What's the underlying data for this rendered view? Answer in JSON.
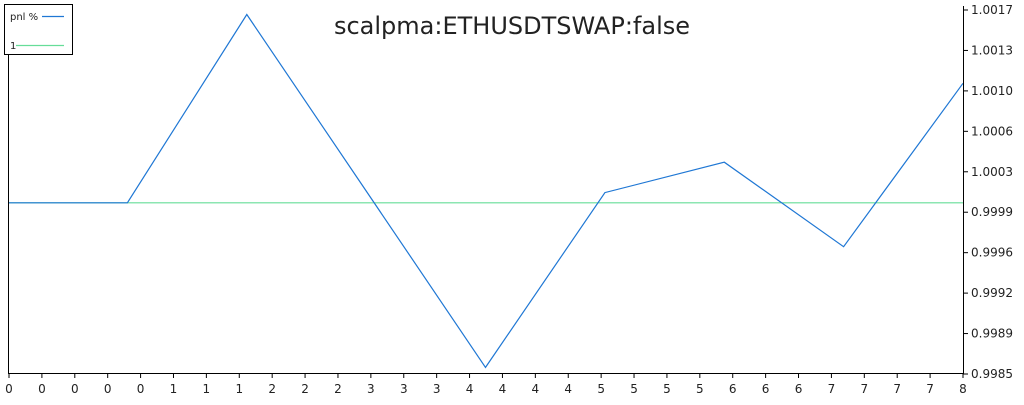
{
  "chart_data": {
    "type": "line",
    "title": "scalpma:ETHUSDTSWAP:false",
    "x_tick_labels": [
      "0",
      "0",
      "0",
      "0",
      "0",
      "1",
      "1",
      "1",
      "2",
      "2",
      "2",
      "3",
      "3",
      "3",
      "4",
      "4",
      "4",
      "4",
      "5",
      "5",
      "5",
      "5",
      "6",
      "6",
      "6",
      "7",
      "7",
      "7",
      "7",
      "8"
    ],
    "y_tick_labels": [
      "1.0017",
      "1.0013",
      "1.0010",
      "1.0006",
      "1.0003",
      "0.9999",
      "0.9996",
      "0.9992",
      "0.9989",
      "0.9985"
    ],
    "ylim": [
      0.99849,
      1.00171
    ],
    "xlim": [
      0,
      8
    ],
    "grid": false,
    "legend_position": "top-left",
    "series": [
      {
        "name": "pnl %",
        "color": "#1f77d4",
        "points": [
          [
            0,
            1.0
          ],
          [
            1,
            1.0
          ],
          [
            2,
            1.00167
          ],
          [
            4,
            0.99854
          ],
          [
            5,
            1.00009
          ],
          [
            6,
            1.00036
          ],
          [
            7,
            0.99961
          ],
          [
            8,
            1.00106
          ]
        ]
      },
      {
        "name": "1",
        "color": "#66dd99",
        "points": [
          [
            0,
            1.0
          ],
          [
            8,
            1.0
          ]
        ]
      }
    ]
  }
}
